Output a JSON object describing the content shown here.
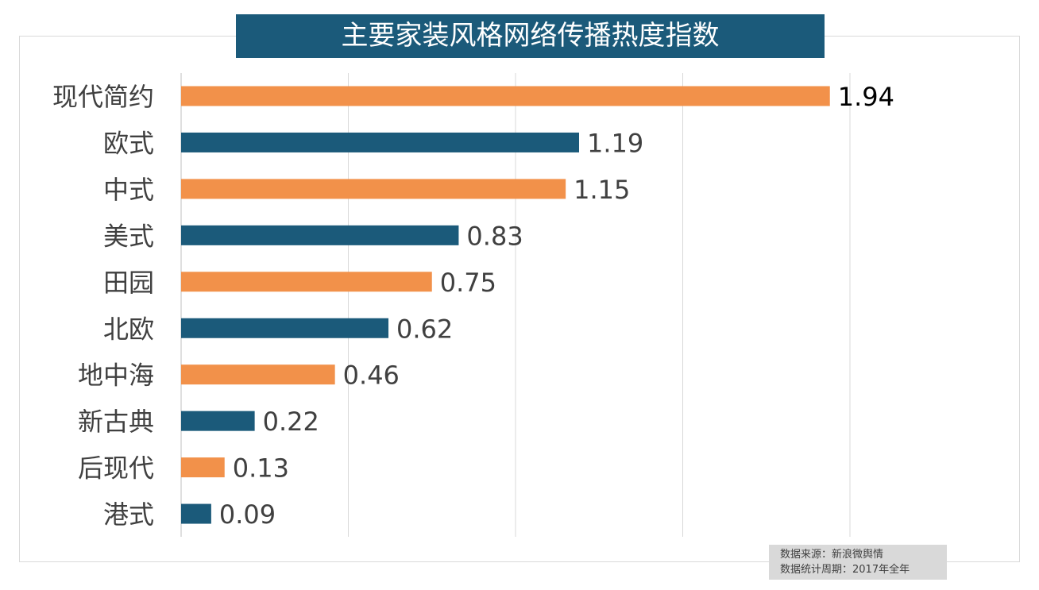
{
  "chart_data": {
    "type": "bar",
    "orientation": "horizontal",
    "title": "主要家装风格网络传播热度指数",
    "categories": [
      "现代简约",
      "欧式",
      "中式",
      "美式",
      "田园",
      "北欧",
      "地中海",
      "新古典",
      "后现代",
      "港式"
    ],
    "values": [
      1.94,
      1.19,
      1.15,
      0.83,
      0.75,
      0.62,
      0.46,
      0.22,
      0.13,
      0.09
    ],
    "value_labels": [
      "1.94",
      "1.19",
      "1.15",
      "0.83",
      "0.75",
      "0.62",
      "0.46",
      "0.22",
      "0.13",
      "0.09"
    ],
    "xlim": [
      0,
      2
    ],
    "grid_values": [
      0,
      0.5,
      1,
      1.5,
      2
    ],
    "grid": true,
    "colors": [
      "#f2914a",
      "#1b5a7a"
    ]
  },
  "source": {
    "line1": "数据来源：新浪微舆情",
    "line2": "数据统计周期：2017年全年"
  }
}
